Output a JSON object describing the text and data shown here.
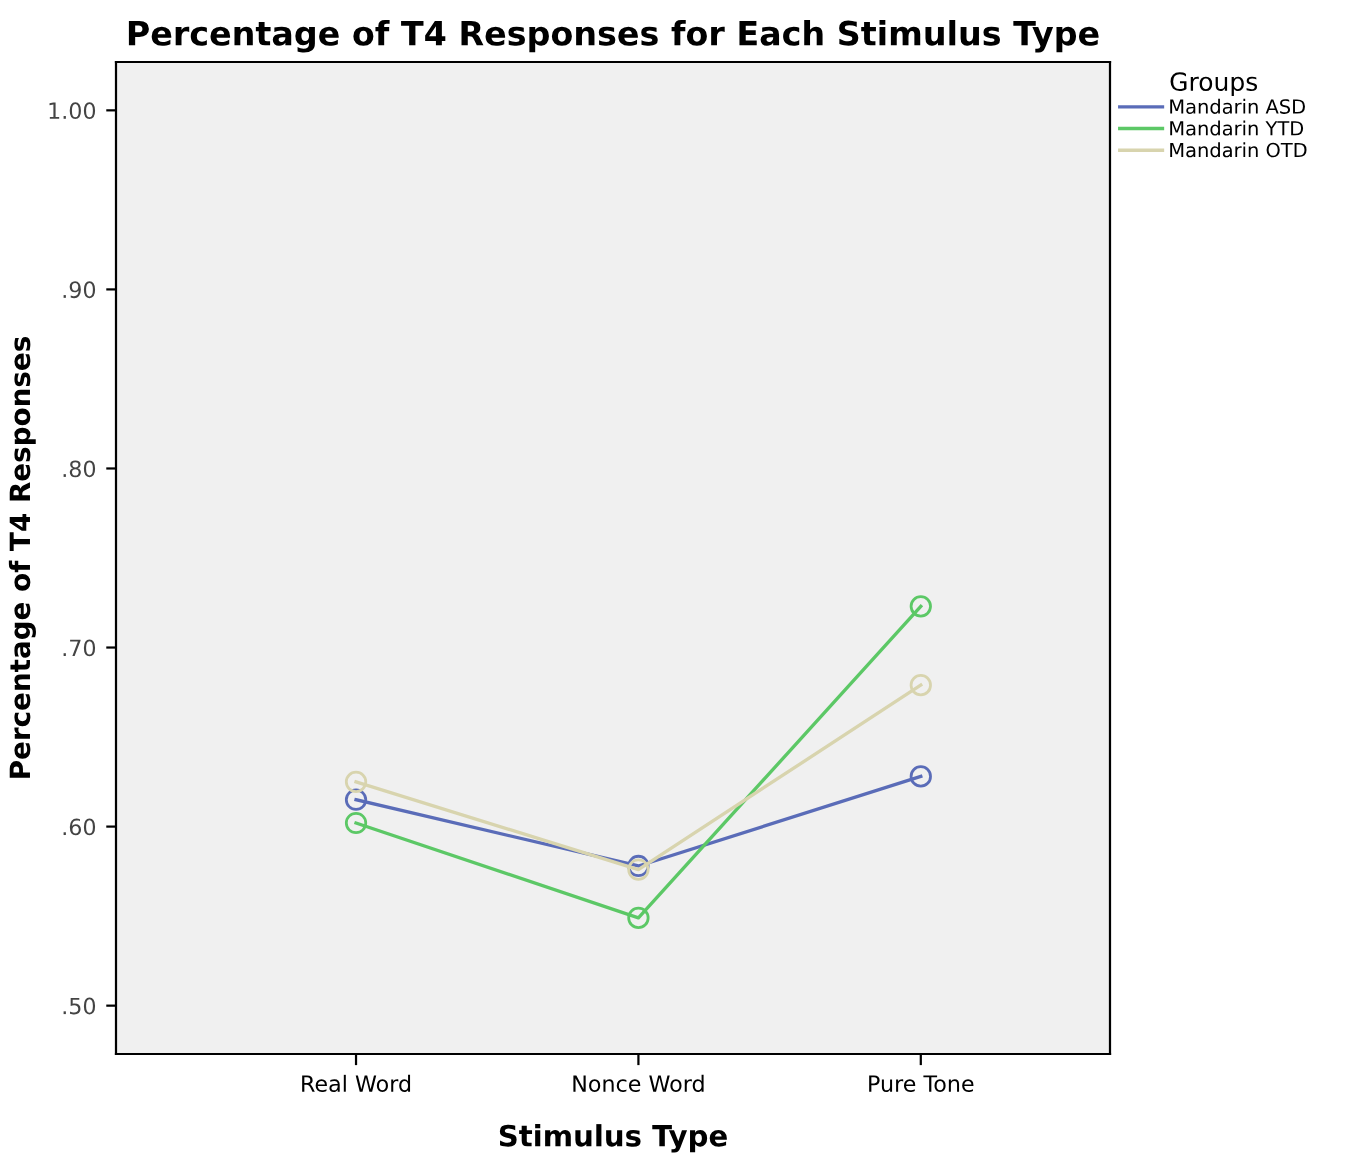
{
  "chart_data": {
    "type": "line",
    "title": "Percentage of T4 Responses for Each Stimulus Type",
    "xlabel": "Stimulus Type",
    "ylabel": "Percentage of T4 Responses",
    "legend_title": "Groups",
    "categories": [
      "Real Word",
      "Nonce Word",
      "Pure Tone"
    ],
    "series": [
      {
        "name": "Mandarin ASD",
        "color": "#5a6cb8",
        "values": [
          0.615,
          0.578,
          0.628
        ]
      },
      {
        "name": "Mandarin YTD",
        "color": "#5cc866",
        "values": [
          0.602,
          0.549,
          0.723
        ]
      },
      {
        "name": "Mandarin OTD",
        "color": "#d8d4ae",
        "values": [
          0.625,
          0.576,
          0.679
        ]
      }
    ],
    "ylim": [
      0.473,
      1.027
    ],
    "yticks": [
      {
        "value": 0.5,
        "label": ".50"
      },
      {
        "value": 0.6,
        "label": ".60"
      },
      {
        "value": 0.7,
        "label": ".70"
      },
      {
        "value": 0.8,
        "label": ".80"
      },
      {
        "value": 0.9,
        "label": ".90"
      },
      {
        "value": 1.0,
        "label": "1.00"
      }
    ],
    "marker": "circle",
    "line_style": "solid",
    "grid": false,
    "legend": "top right"
  }
}
